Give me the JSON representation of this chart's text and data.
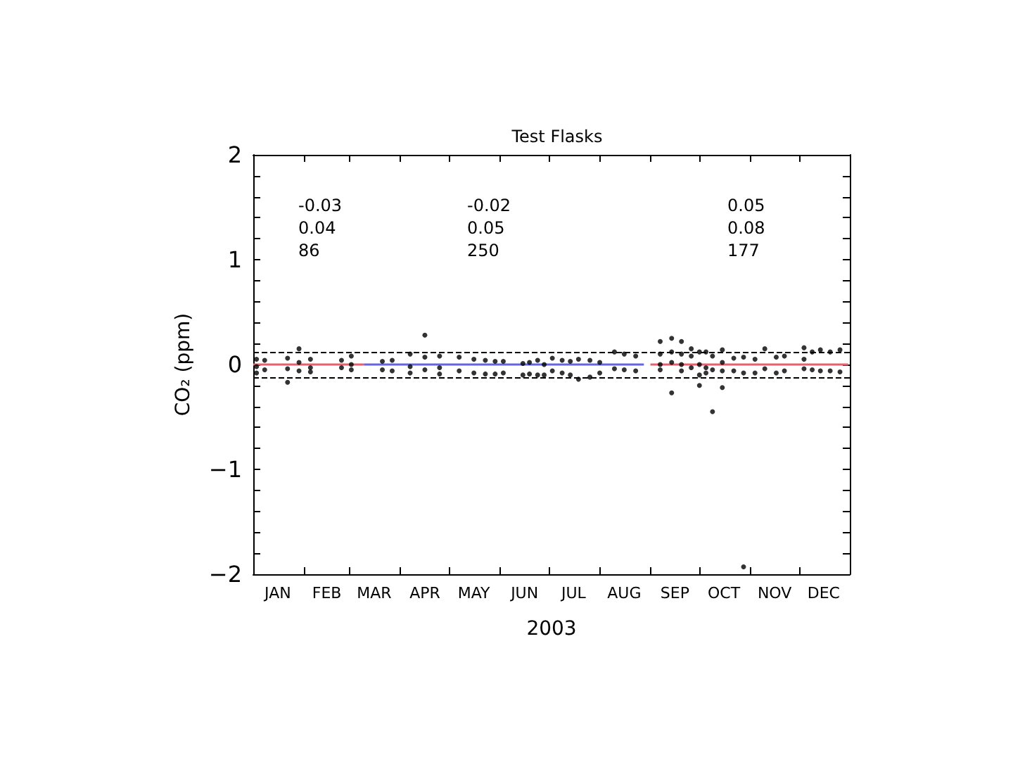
{
  "chart_data": {
    "type": "scatter",
    "title": "Test Flasks",
    "xlabel": "2003",
    "ylabel": "CO₂ (ppm)",
    "annotations": [
      "-0.03",
      "0.04",
      "86",
      "-0.02",
      "0.05",
      "250",
      "0.05",
      "0.08",
      "177"
    ],
    "xlim": [
      "2003-01-01",
      "2004-01-01"
    ],
    "xticks": [
      {
        "value": "2003-01-16",
        "label": "JAN"
      },
      {
        "value": "2003-02-01",
        "label": null
      },
      {
        "value": "2003-02-15",
        "label": "FEB"
      },
      {
        "value": "2003-03-01",
        "label": null
      },
      {
        "value": "2003-03-16",
        "label": "MAR"
      },
      {
        "value": "2003-04-01",
        "label": null
      },
      {
        "value": "2003-04-16",
        "label": "APR"
      },
      {
        "value": "2003-05-01",
        "label": null
      },
      {
        "value": "2003-05-16",
        "label": "MAY"
      },
      {
        "value": "2003-06-01",
        "label": null
      },
      {
        "value": "2003-06-16",
        "label": "JUN"
      },
      {
        "value": "2003-07-01",
        "label": null
      },
      {
        "value": "2003-07-16",
        "label": "JUL"
      },
      {
        "value": "2003-08-01",
        "label": null
      },
      {
        "value": "2003-08-16",
        "label": "AUG"
      },
      {
        "value": "2003-09-01",
        "label": null
      },
      {
        "value": "2003-09-16",
        "label": "SEP"
      },
      {
        "value": "2003-10-01",
        "label": null
      },
      {
        "value": "2003-10-16",
        "label": "OCT"
      },
      {
        "value": "2003-11-01",
        "label": null
      },
      {
        "value": "2003-11-16",
        "label": "NOV"
      },
      {
        "value": "2003-12-01",
        "label": null
      },
      {
        "value": "2003-12-16",
        "label": "DEC"
      }
    ],
    "ylim": [
      -2,
      2
    ],
    "yticks": [
      -2,
      {
        "value": -1.8,
        "label": null
      },
      {
        "value": -1.6,
        "label": null
      },
      {
        "value": -1.4,
        "label": null
      },
      {
        "value": -1.2,
        "label": null
      },
      -1,
      {
        "value": -0.8,
        "label": null
      },
      {
        "value": -0.6,
        "label": null
      },
      {
        "value": -0.4,
        "label": null
      },
      {
        "value": -0.2,
        "label": null
      },
      0,
      {
        "value": 0.2,
        "label": null
      },
      {
        "value": 0.4,
        "label": null
      },
      {
        "value": 0.6,
        "label": null
      },
      {
        "value": 0.8,
        "label": null
      },
      1,
      {
        "value": 1.2,
        "label": null
      },
      {
        "value": 1.4,
        "label": null
      },
      {
        "value": 1.6,
        "label": null
      },
      {
        "value": 1.8,
        "label": null
      },
      2
    ],
    "grid": false,
    "ref_lines": [
      {
        "axis": "y",
        "value": 0.12,
        "color": "#000000",
        "line_style": "dashed"
      },
      {
        "axis": "y",
        "value": -0.12,
        "color": "#000000",
        "line_style": "dashed"
      }
    ],
    "series": [
      {
        "color": "#000000",
        "marker": "circle",
        "x": [
          "2003-01-03",
          "2003-01-03",
          "2003-01-03",
          "2003-01-08",
          "2003-01-08",
          "2003-01-22",
          "2003-01-22",
          "2003-01-22",
          "2003-01-29",
          "2003-01-29",
          "2003-01-29",
          "2003-02-05",
          "2003-02-05",
          "2003-02-05",
          "2003-02-24",
          "2003-02-24",
          "2003-03-02",
          "2003-03-02",
          "2003-03-02",
          "2003-03-21",
          "2003-03-21",
          "2003-03-27",
          "2003-03-27",
          "2003-04-07",
          "2003-04-07",
          "2003-04-07",
          "2003-04-16",
          "2003-04-16",
          "2003-04-16",
          "2003-04-25",
          "2003-04-25",
          "2003-04-25",
          "2003-05-07",
          "2003-05-07",
          "2003-05-16",
          "2003-05-16",
          "2003-05-23",
          "2003-05-23",
          "2003-05-29",
          "2003-05-29",
          "2003-06-03",
          "2003-06-03",
          "2003-06-15",
          "2003-06-15",
          "2003-06-19",
          "2003-06-19",
          "2003-06-24",
          "2003-06-24",
          "2003-06-28",
          "2003-06-28",
          "2003-07-03",
          "2003-07-03",
          "2003-07-09",
          "2003-07-09",
          "2003-07-14",
          "2003-07-14",
          "2003-07-19",
          "2003-07-19",
          "2003-07-26",
          "2003-07-26",
          "2003-08-01",
          "2003-08-01",
          "2003-08-10",
          "2003-08-10",
          "2003-08-16",
          "2003-08-16",
          "2003-08-23",
          "2003-08-23",
          "2003-09-07",
          "2003-09-07",
          "2003-09-07",
          "2003-09-07",
          "2003-09-14",
          "2003-09-14",
          "2003-09-14",
          "2003-09-14",
          "2003-09-20",
          "2003-09-20",
          "2003-09-20",
          "2003-09-20",
          "2003-09-26",
          "2003-09-26",
          "2003-09-26",
          "2003-10-01",
          "2003-10-01",
          "2003-10-01",
          "2003-10-01",
          "2003-10-05",
          "2003-10-05",
          "2003-10-05",
          "2003-10-09",
          "2003-10-09",
          "2003-10-09",
          "2003-10-15",
          "2003-10-15",
          "2003-10-15",
          "2003-10-15",
          "2003-10-22",
          "2003-10-22",
          "2003-10-28",
          "2003-10-28",
          "2003-10-28",
          "2003-11-04",
          "2003-11-04",
          "2003-11-10",
          "2003-11-10",
          "2003-11-17",
          "2003-11-17",
          "2003-11-22",
          "2003-11-22",
          "2003-12-04",
          "2003-12-04",
          "2003-12-04",
          "2003-12-09",
          "2003-12-09",
          "2003-12-14",
          "2003-12-14",
          "2003-12-20",
          "2003-12-20",
          "2003-12-26",
          "2003-12-26"
        ],
        "values": [
          0.05,
          -0.02,
          -0.08,
          0.04,
          -0.05,
          0.06,
          -0.04,
          -0.17,
          0.15,
          0.02,
          -0.06,
          0.05,
          -0.03,
          -0.07,
          0.04,
          -0.03,
          0.08,
          0.0,
          -0.05,
          0.03,
          -0.05,
          0.04,
          -0.06,
          0.1,
          -0.02,
          -0.08,
          0.28,
          0.07,
          -0.05,
          0.08,
          -0.03,
          -0.09,
          0.07,
          -0.06,
          0.05,
          -0.08,
          0.04,
          -0.09,
          0.03,
          -0.09,
          0.03,
          -0.08,
          0.01,
          -0.1,
          0.02,
          -0.09,
          0.04,
          -0.1,
          0.0,
          -0.1,
          0.06,
          -0.06,
          0.04,
          -0.08,
          0.03,
          -0.1,
          0.05,
          -0.14,
          0.04,
          -0.12,
          0.02,
          -0.08,
          0.12,
          -0.04,
          0.1,
          -0.05,
          0.08,
          -0.06,
          0.22,
          0.1,
          0.0,
          -0.05,
          0.25,
          0.12,
          0.02,
          -0.27,
          0.22,
          0.1,
          0.0,
          -0.06,
          0.15,
          0.08,
          -0.03,
          0.12,
          0.0,
          -0.1,
          -0.2,
          0.12,
          -0.03,
          -0.08,
          0.08,
          -0.05,
          -0.45,
          0.14,
          0.02,
          -0.06,
          -0.22,
          0.06,
          -0.06,
          0.07,
          -0.08,
          -1.93,
          0.05,
          -0.08,
          0.15,
          -0.04,
          0.07,
          -0.08,
          0.08,
          -0.06,
          0.16,
          0.05,
          -0.04,
          0.12,
          -0.05,
          0.14,
          -0.06,
          0.12,
          -0.06,
          0.14,
          -0.07
        ]
      },
      {
        "type": "line",
        "marker": "none",
        "color": "#e8606e",
        "x": [
          "2003-01-01",
          "2003-03-10"
        ],
        "values": [
          0,
          0
        ]
      },
      {
        "type": "line",
        "marker": "none",
        "color": "#6464e6",
        "x": [
          "2003-03-10",
          "2003-08-28"
        ],
        "values": [
          0,
          0
        ]
      },
      {
        "type": "line",
        "marker": "none",
        "color": "#e8606e",
        "x": [
          "2003-09-01",
          "2003-12-31"
        ],
        "values": [
          0,
          0
        ]
      }
    ]
  }
}
